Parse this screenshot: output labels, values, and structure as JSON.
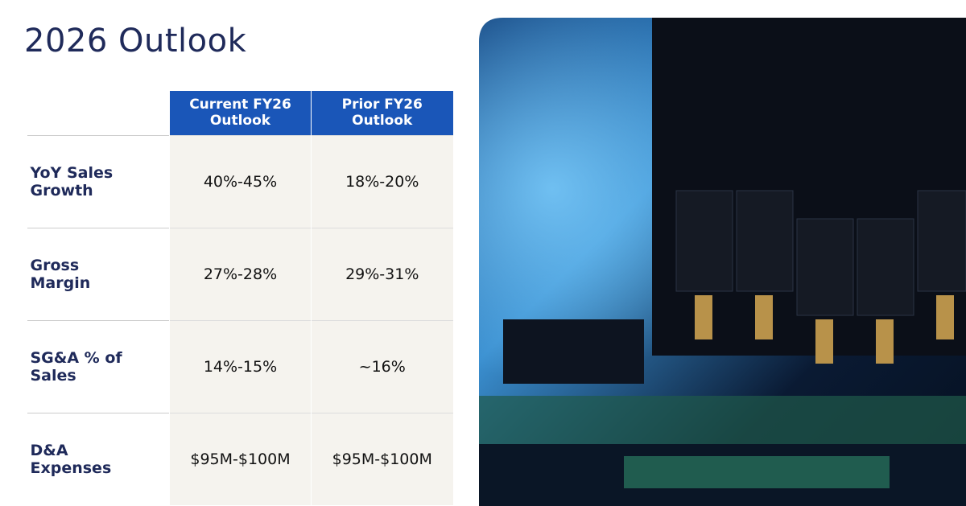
{
  "title": "2026 Outlook",
  "table": {
    "columns": [
      "Current FY26 Outlook",
      "Prior FY26 Outlook"
    ],
    "rows": [
      [
        "YoY Sales Growth",
        "40%-45%",
        "18%-20%"
      ],
      [
        "Gross Margin",
        "27%-28%",
        "29%-31%"
      ],
      [
        "SG&A % of Sales",
        "14%-15%",
        "~16%"
      ],
      [
        "D&A Expenses",
        "$95M-$100M",
        "$95M-$100M"
      ]
    ]
  }
}
